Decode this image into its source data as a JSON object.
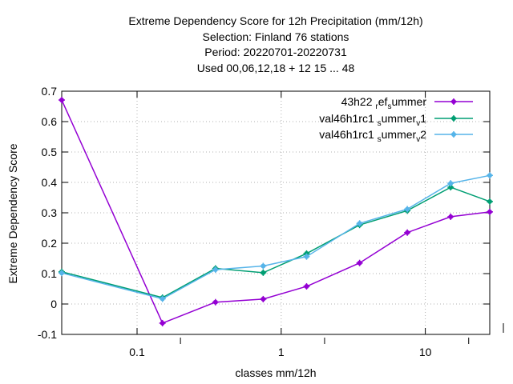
{
  "chart_data": {
    "type": "line",
    "title_lines": [
      "Extreme Dependency Score  for 12h Precipitation (mm/12h)",
      "Selection: Finland     76 stations",
      "Period: 20220701-20220731",
      "Used  00,06,12,18  + 12 15 ... 48"
    ],
    "xlabel": "classes mm/12h",
    "ylabel": "Extreme Dependency Score",
    "x_scale": "log",
    "xlim": [
      0.03,
      28
    ],
    "ylim": [
      -0.1,
      0.7
    ],
    "x_ticks": [
      {
        "value": 0.1,
        "label": "0.1"
      },
      {
        "value": 1,
        "label": "1"
      },
      {
        "value": 10,
        "label": "10"
      }
    ],
    "x_minor_ticks": [
      0.2,
      2,
      20
    ],
    "y_ticks": [
      {
        "value": -0.1,
        "label": "-0.1"
      },
      {
        "value": 0,
        "label": "0"
      },
      {
        "value": 0.1,
        "label": "0.1"
      },
      {
        "value": 0.2,
        "label": "0.2"
      },
      {
        "value": 0.3,
        "label": "0.3"
      },
      {
        "value": 0.4,
        "label": "0.4"
      },
      {
        "value": 0.5,
        "label": "0.5"
      },
      {
        "value": 0.6,
        "label": "0.6"
      },
      {
        "value": 0.7,
        "label": "0.7"
      }
    ],
    "grid": true,
    "legend_position": "top-right",
    "x": [
      0.03,
      0.15,
      0.35,
      0.75,
      1.5,
      3.5,
      7.5,
      15,
      28
    ],
    "series": [
      {
        "name": "43h22 ref_summer",
        "legend_base": "43h22 ",
        "legend_parts": [
          [
            "r",
            "sub"
          ],
          [
            "ef",
            "base"
          ],
          [
            "s",
            "sub"
          ],
          [
            "ummer",
            "base"
          ]
        ],
        "color": "#9400d3",
        "values": [
          0.671,
          -0.063,
          0.006,
          0.016,
          0.058,
          0.135,
          0.235,
          0.287,
          0.303
        ]
      },
      {
        "name": "val46h1rc1_summer_v1",
        "legend_parts": [
          [
            "val46h1rc1 ",
            "base"
          ],
          [
            "s",
            "sub"
          ],
          [
            "ummer",
            "base"
          ],
          [
            "v",
            "sub"
          ],
          [
            "1",
            "base"
          ]
        ],
        "color": "#009e73",
        "values": [
          0.106,
          0.021,
          0.117,
          0.103,
          0.166,
          0.26,
          0.307,
          0.384,
          0.337
        ]
      },
      {
        "name": "val46h1rc1_summer_v2",
        "legend_parts": [
          [
            "val46h1rc1 ",
            "base"
          ],
          [
            "s",
            "sub"
          ],
          [
            "ummer",
            "base"
          ],
          [
            "v",
            "sub"
          ],
          [
            "2",
            "base"
          ]
        ],
        "color": "#56b4e9",
        "values": [
          0.102,
          0.017,
          0.113,
          0.125,
          0.156,
          0.265,
          0.312,
          0.397,
          0.423
        ]
      }
    ]
  }
}
